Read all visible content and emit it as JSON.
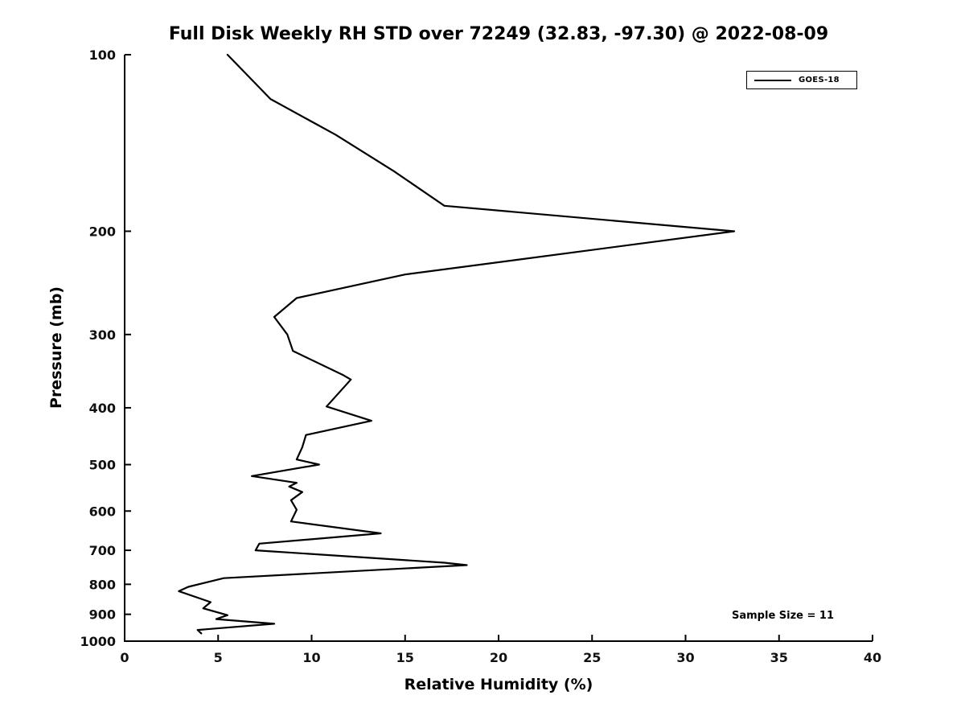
{
  "title": "Full Disk Weekly RH STD over 72249 (32.83, -97.30) @ 2022-08-09",
  "legend": {
    "label": "GOES-18"
  },
  "annotation": "Sample Size = 11",
  "colors": {
    "line": "#000000",
    "axis": "#000000",
    "background": "#ffffff"
  },
  "chart_data": {
    "type": "line",
    "title": "Full Disk Weekly RH STD over 72249 (32.83, -97.30) @ 2022-08-09",
    "xlabel": "Relative Humidity (%)",
    "ylabel": "Pressure (mb)",
    "xlim": [
      0,
      40
    ],
    "x_ticks": [
      0,
      5,
      10,
      15,
      20,
      25,
      30,
      35,
      40
    ],
    "y_scale": "log",
    "y_reversed": true,
    "ylim": [
      100,
      1000
    ],
    "y_ticks": [
      100,
      200,
      300,
      400,
      500,
      600,
      700,
      800,
      900,
      1000
    ],
    "grid": false,
    "legend": {
      "position": "upper right",
      "entries": [
        "GOES-18"
      ]
    },
    "annotations": [
      {
        "text": "Sample Size = 11",
        "x": 32.5,
        "y": 907
      }
    ],
    "series": [
      {
        "name": "GOES-18",
        "color": "#000000",
        "x_rh_percent": [
          5.5,
          7.8,
          11.3,
          14.4,
          17.1,
          32.6,
          15.0,
          9.2,
          8.0,
          8.7,
          9.0,
          11.7,
          12.1,
          10.8,
          13.2,
          9.7,
          9.5,
          9.2,
          10.4,
          6.8,
          9.2,
          8.8,
          9.5,
          8.9,
          9.2,
          8.9,
          13.7,
          7.2,
          7.0,
          17.1,
          18.3,
          5.3,
          3.4,
          2.9,
          4.6,
          4.2,
          5.5,
          4.9,
          8.0,
          3.9,
          4.1
        ],
        "y_pressure_mb": [
          100,
          119,
          137,
          158,
          181,
          200,
          237,
          260,
          280,
          300,
          320,
          352,
          358,
          398,
          421,
          445,
          467,
          490,
          500,
          523,
          537,
          545,
          557,
          575,
          597,
          625,
          655,
          682,
          700,
          735,
          742,
          781,
          808,
          822,
          858,
          879,
          903,
          917,
          934,
          957,
          970
        ]
      }
    ]
  }
}
